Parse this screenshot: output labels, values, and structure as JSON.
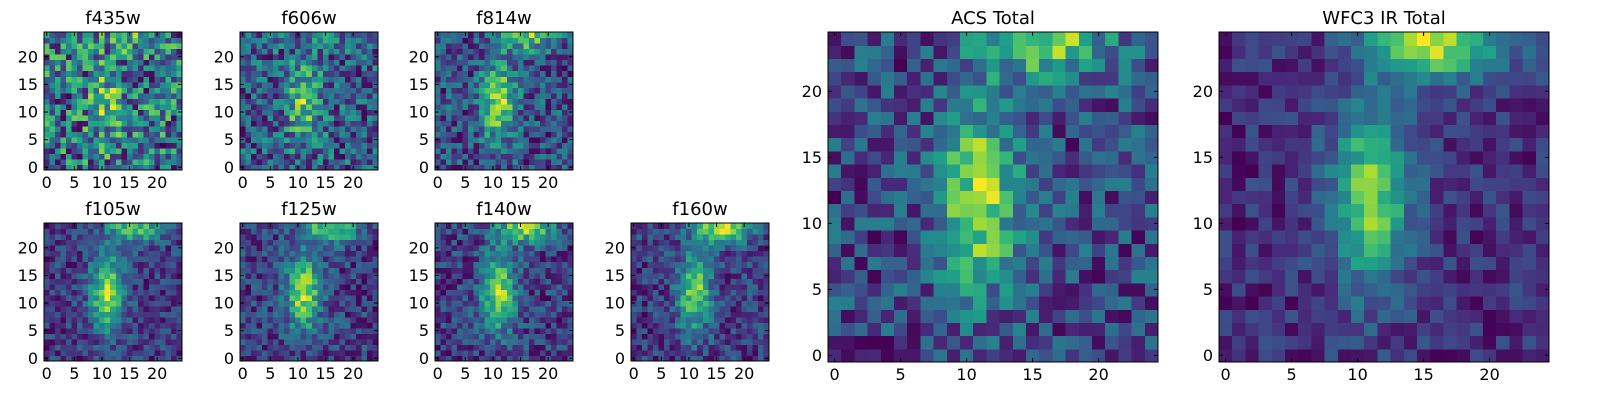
{
  "figure": {
    "colormap": "viridis",
    "background": "#ffffff"
  },
  "chart_data": [
    {
      "type": "heatmap",
      "title": "f435w",
      "grid_size": 25,
      "xlim": [
        0,
        24
      ],
      "ylim": [
        0,
        24
      ],
      "x_ticks": [
        0,
        5,
        10,
        15,
        20
      ],
      "y_ticks": [
        0,
        5,
        10,
        15,
        20
      ],
      "seed": 11,
      "noise": 0.55,
      "blob_strength": 0.2,
      "top_strength": 0.1
    },
    {
      "type": "heatmap",
      "title": "f606w",
      "grid_size": 25,
      "xlim": [
        0,
        24
      ],
      "ylim": [
        0,
        24
      ],
      "x_ticks": [
        0,
        5,
        10,
        15,
        20
      ],
      "y_ticks": [
        0,
        5,
        10,
        15,
        20
      ],
      "seed": 23,
      "noise": 0.45,
      "blob_strength": 0.35,
      "top_strength": 0.1
    },
    {
      "type": "heatmap",
      "title": "f814w",
      "grid_size": 25,
      "xlim": [
        0,
        24
      ],
      "ylim": [
        0,
        24
      ],
      "x_ticks": [
        0,
        5,
        10,
        15,
        20
      ],
      "y_ticks": [
        0,
        5,
        10,
        15,
        20
      ],
      "seed": 37,
      "noise": 0.45,
      "blob_strength": 0.55,
      "top_strength": 0.45
    },
    {
      "type": "heatmap",
      "title": "f105w",
      "grid_size": 25,
      "xlim": [
        0,
        24
      ],
      "ylim": [
        0,
        24
      ],
      "x_ticks": [
        0,
        5,
        10,
        15,
        20
      ],
      "y_ticks": [
        0,
        5,
        10,
        15,
        20
      ],
      "seed": 41,
      "noise": 0.3,
      "blob_strength": 0.6,
      "top_strength": 0.5
    },
    {
      "type": "heatmap",
      "title": "f125w",
      "grid_size": 25,
      "xlim": [
        0,
        24
      ],
      "ylim": [
        0,
        24
      ],
      "x_ticks": [
        0,
        5,
        10,
        15,
        20
      ],
      "y_ticks": [
        0,
        5,
        10,
        15,
        20
      ],
      "seed": 53,
      "noise": 0.32,
      "blob_strength": 0.55,
      "top_strength": 0.5
    },
    {
      "type": "heatmap",
      "title": "f140w",
      "grid_size": 25,
      "xlim": [
        0,
        24
      ],
      "ylim": [
        0,
        24
      ],
      "x_ticks": [
        0,
        5,
        10,
        15,
        20
      ],
      "y_ticks": [
        0,
        5,
        10,
        15,
        20
      ],
      "seed": 67,
      "noise": 0.32,
      "blob_strength": 0.55,
      "top_strength": 0.55
    },
    {
      "type": "heatmap",
      "title": "f160w",
      "grid_size": 25,
      "xlim": [
        0,
        24
      ],
      "ylim": [
        0,
        24
      ],
      "x_ticks": [
        0,
        5,
        10,
        15,
        20
      ],
      "y_ticks": [
        0,
        5,
        10,
        15,
        20
      ],
      "seed": 79,
      "noise": 0.3,
      "blob_strength": 0.5,
      "top_strength": 0.6
    },
    {
      "type": "heatmap",
      "title": "ACS Total",
      "grid_size": 25,
      "xlim": [
        0,
        24
      ],
      "ylim": [
        0,
        24
      ],
      "x_ticks": [
        0,
        5,
        10,
        15,
        20
      ],
      "y_ticks": [
        0,
        5,
        10,
        15,
        20
      ],
      "seed": 97,
      "noise": 0.38,
      "blob_strength": 0.55,
      "top_strength": 0.5
    },
    {
      "type": "heatmap",
      "title": "WFC3 IR Total",
      "grid_size": 25,
      "xlim": [
        0,
        24
      ],
      "ylim": [
        0,
        24
      ],
      "x_ticks": [
        0,
        5,
        10,
        15,
        20
      ],
      "y_ticks": [
        0,
        5,
        10,
        15,
        20
      ],
      "seed": 113,
      "noise": 0.22,
      "blob_strength": 0.55,
      "top_strength": 0.65
    }
  ]
}
